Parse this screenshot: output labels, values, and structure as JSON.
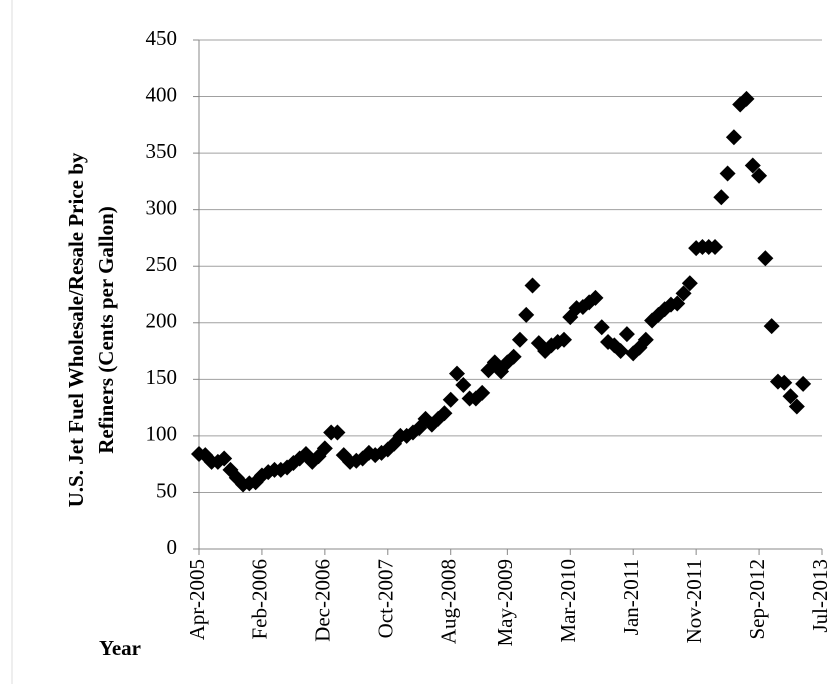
{
  "chart_data": {
    "type": "scatter",
    "y_label": [
      "U.S. Jet Fuel Wholesale/Resale Price by",
      "Refiners (Cents per Gallon)"
    ],
    "x_label": "Year",
    "x": [
      "2005-04",
      "2005-05",
      "2005-06",
      "2005-07",
      "2005-08",
      "2005-09",
      "2005-10",
      "2005-11",
      "2005-12",
      "2006-01",
      "2006-02",
      "2006-03",
      "2006-04",
      "2006-05",
      "2006-06",
      "2006-07",
      "2006-08",
      "2006-09",
      "2006-10",
      "2006-11",
      "2006-12",
      "2007-01",
      "2007-02",
      "2007-03",
      "2007-04",
      "2007-05",
      "2007-06",
      "2007-07",
      "2007-08",
      "2007-09",
      "2007-10",
      "2007-11",
      "2007-12",
      "2008-01",
      "2008-02",
      "2008-03",
      "2008-04",
      "2008-05",
      "2008-06",
      "2008-07",
      "2008-08",
      "2008-09",
      "2008-10",
      "2008-11",
      "2008-12",
      "2009-01",
      "2009-02",
      "2009-03",
      "2009-04",
      "2009-05",
      "2009-06",
      "2009-07",
      "2009-08",
      "2009-09",
      "2009-10",
      "2009-11",
      "2009-12",
      "2010-01",
      "2010-02",
      "2010-03",
      "2010-04",
      "2010-05",
      "2010-06",
      "2010-07",
      "2010-08",
      "2010-09",
      "2010-10",
      "2010-11",
      "2010-12",
      "2011-01",
      "2011-02",
      "2011-03",
      "2011-04",
      "2011-05",
      "2011-06",
      "2011-07",
      "2011-08",
      "2011-09",
      "2011-10",
      "2011-11",
      "2011-12",
      "2012-01",
      "2012-02",
      "2012-03",
      "2012-04",
      "2012-05",
      "2012-06",
      "2012-07",
      "2012-08",
      "2012-09",
      "2012-10",
      "2012-11",
      "2012-12",
      "2013-01",
      "2013-02",
      "2013-03",
      "2013-04"
    ],
    "values": [
      84,
      83,
      77,
      77,
      80,
      70,
      63,
      57,
      58,
      59,
      65,
      68,
      70,
      70,
      72,
      76,
      80,
      84,
      77,
      82,
      89,
      103,
      103,
      83,
      77,
      78,
      80,
      85,
      83,
      85,
      88,
      93,
      100,
      100,
      103,
      107,
      115,
      110,
      115,
      120,
      132,
      155,
      145,
      133,
      133,
      138,
      158,
      165,
      157,
      165,
      170,
      185,
      207,
      233,
      182,
      175,
      180,
      183,
      185,
      205,
      213,
      214,
      218,
      222,
      196,
      183,
      180,
      175,
      190,
      173,
      178,
      185,
      202,
      207,
      212,
      216,
      217,
      226,
      235,
      266,
      267,
      267,
      267,
      311,
      332,
      364,
      393,
      398,
      339,
      330,
      257,
      197,
      148,
      147,
      135,
      126,
      146
    ],
    "color": "#000000",
    "xlim": [
      "2005-04",
      "2013-07"
    ],
    "xticks": [
      {
        "value": "2005-04",
        "label": "Apr-2005"
      },
      {
        "value": "2006-02",
        "label": "Feb-2006"
      },
      {
        "value": "2006-12",
        "label": "Dec-2006"
      },
      {
        "value": "2007-10",
        "label": "Oct-2007"
      },
      {
        "value": "2008-08",
        "label": "Aug-2008"
      },
      {
        "value": "2009-05",
        "label": "May-2009"
      },
      {
        "value": "2010-03",
        "label": "Mar-2010"
      },
      {
        "value": "2011-01",
        "label": "Jan-2011"
      },
      {
        "value": "2011-11",
        "label": "Nov-2011"
      },
      {
        "value": "2012-09",
        "label": "Sep-2012"
      },
      {
        "value": "2013-07",
        "label": "Jul-2013"
      }
    ],
    "ylim": [
      0,
      450
    ],
    "yticks": [
      0,
      50,
      100,
      150,
      200,
      250,
      300,
      350,
      400,
      450
    ],
    "grid": true
  }
}
